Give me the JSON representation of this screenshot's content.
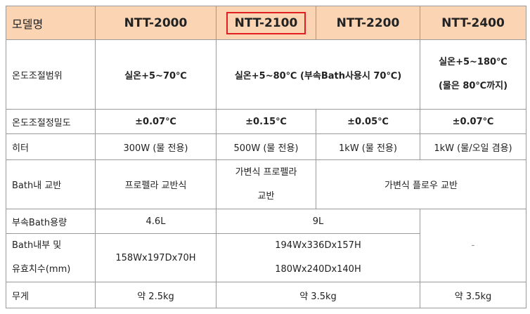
{
  "header": [
    "모델명",
    "NTT-2000",
    "NTT-2100",
    "NTT-2200",
    "NTT-2400"
  ],
  "rows": [
    {
      "label": "온도조절범위",
      "cells": [
        "실온+5~70℃",
        "실온+5~80℃ (부속Bath사용시 70℃)",
        [
          "실온+5~180℃",
          "(물은 80℃까지)"
        ]
      ]
    },
    {
      "label": "온도조절정밀도",
      "cells": [
        "±0.07℃",
        "±0.15℃",
        "±0.05℃",
        "±0.07℃"
      ]
    },
    {
      "label": "히터",
      "cells": [
        "300W (물 전용)",
        "500W (물 전용)",
        "1kW (물 전용)",
        "1kW (물/오일 겸용)"
      ]
    },
    {
      "label": "Bath내 교반",
      "cells": [
        "프로펠라 교반식",
        [
          "가변식 프로펠라",
          "교반"
        ],
        "가변식 플로우 교반"
      ]
    },
    {
      "label": "부속Bath용량",
      "cells": [
        "4.6L",
        "9L",
        "-"
      ]
    },
    {
      "label": [
        "Bath내부 및",
        "유효치수(mm)"
      ],
      "cells": [
        "158Wx197Dx70H",
        [
          "194Wx336Dx157H",
          "180Wx240Dx140H"
        ]
      ]
    },
    {
      "label": "무게",
      "cells": [
        "약 2.5kg",
        "약 3.5kg",
        "약 3.5kg"
      ]
    }
  ]
}
